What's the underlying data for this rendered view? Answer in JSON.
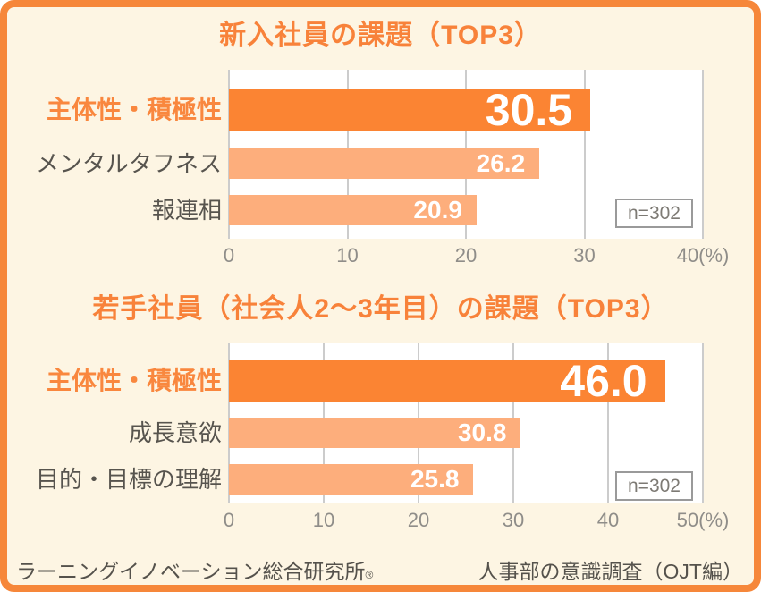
{
  "colors": {
    "frame_border": "#f6873a",
    "background": "#fdf5e3",
    "plot_background": "#ffffff",
    "title_orange": "#f8823a",
    "bar_dark_orange": "#fb8433",
    "bar_light_orange": "#fdae7c",
    "category_gray": "#57544e",
    "axis_gray": "#8f8d89",
    "gridline_gray": "#cccccc",
    "value_text": "#ffffff"
  },
  "chart_data": [
    {
      "type": "bar",
      "orientation": "horizontal",
      "title": "新入社員の課題（TOP3）",
      "categories": [
        "主体性・積極性",
        "メンタルタフネス",
        "報連相"
      ],
      "values": [
        30.5,
        26.2,
        20.9
      ],
      "value_labels": [
        "30.5",
        "26.2",
        "20.9"
      ],
      "emphasis": [
        true,
        false,
        false
      ],
      "xlim": [
        0,
        40
      ],
      "tick_labels": [
        "0",
        "10",
        "20",
        "30",
        "40(%)"
      ],
      "grid": true,
      "sample_label": "n=302"
    },
    {
      "type": "bar",
      "orientation": "horizontal",
      "title": "若手社員（社会人2～3年目）の課題（TOP3）",
      "categories": [
        "主体性・積極性",
        "成長意欲",
        "目的・目標の理解"
      ],
      "values": [
        46.0,
        30.8,
        25.8
      ],
      "value_labels": [
        "46.0",
        "30.8",
        "25.8"
      ],
      "emphasis": [
        true,
        false,
        false
      ],
      "xlim": [
        0,
        50
      ],
      "tick_labels": [
        "0",
        "10",
        "20",
        "30",
        "40",
        "50(%)"
      ],
      "grid": true,
      "sample_label": "n=302"
    }
  ],
  "footer": {
    "left": "ラーニングイノベーション総合研究所",
    "left_mark": "®",
    "right": "人事部の意識調査（OJT編）"
  }
}
